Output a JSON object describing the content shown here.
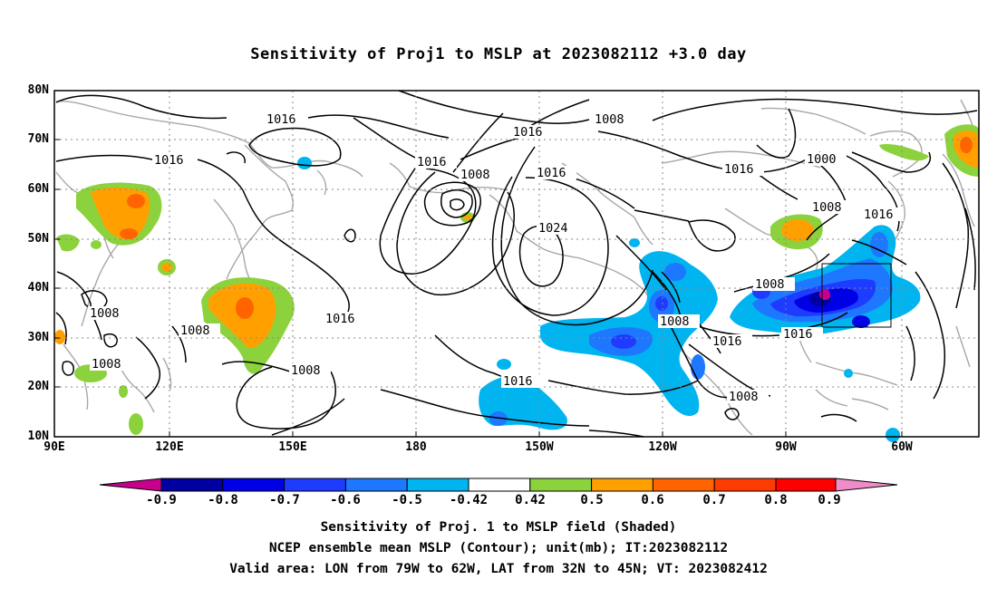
{
  "title": "Sensitivity of Proj1 to MSLP at 2023082112 +3.0 day",
  "map": {
    "lat_labels": [
      "80N",
      "70N",
      "60N",
      "50N",
      "40N",
      "30N",
      "20N",
      "10N"
    ],
    "lon_labels": [
      "90E",
      "120E",
      "150E",
      "180",
      "150W",
      "120W",
      "90W",
      "60W"
    ],
    "contour_labels": [
      "1016",
      "1008",
      "1016",
      "1016",
      "1016",
      "1008",
      "1016",
      "1024",
      "1000",
      "1008",
      "1016",
      "1016",
      "1008",
      "1008",
      "1016",
      "1008",
      "1008",
      "1008",
      "1016",
      "1016",
      "1016",
      "1008",
      "1008"
    ],
    "valid_area_box": {
      "lon_min": -79,
      "lon_max": -62,
      "lat_min": 32,
      "lat_max": 45
    }
  },
  "colorbar": {
    "labels": [
      "-0.9",
      "-0.8",
      "-0.7",
      "-0.6",
      "-0.5",
      "-0.42",
      "0.42",
      "0.5",
      "0.6",
      "0.7",
      "0.8",
      "0.9"
    ],
    "colors": [
      "#c8008c",
      "#0000a0",
      "#0000e6",
      "#1e3cff",
      "#1e78ff",
      "#00b4f0",
      "#ffffff",
      "#8cd23c",
      "#ffa000",
      "#ff6400",
      "#ff3c00",
      "#ff0000",
      "#f08cc8"
    ]
  },
  "captions": {
    "line1": "Sensitivity of Proj. 1 to MSLP field (Shaded)",
    "line2": "NCEP ensemble mean MSLP (Contour); unit(mb); IT:2023082112",
    "line3": "Valid area: LON from 79W to 62W, LAT from 32N to 45N; VT: 2023082412"
  }
}
